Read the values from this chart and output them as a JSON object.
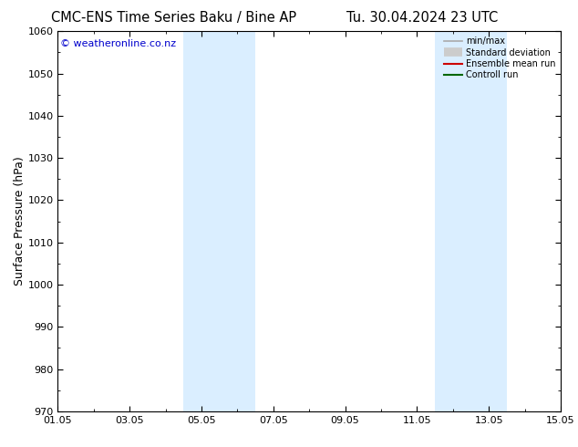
{
  "title_left": "CMC-ENS Time Series Baku / Bine AP",
  "title_right": "Tu. 30.04.2024 23 UTC",
  "xlabel_ticks": [
    "01.05",
    "03.05",
    "05.05",
    "07.05",
    "09.05",
    "11.05",
    "13.05",
    "15.05"
  ],
  "ylabel": "Surface Pressure (hPa)",
  "ylim": [
    970,
    1060
  ],
  "yticks": [
    970,
    980,
    990,
    1000,
    1010,
    1020,
    1030,
    1040,
    1050,
    1060
  ],
  "xlim": [
    0,
    14
  ],
  "xtick_positions": [
    0,
    2,
    4,
    6,
    8,
    10,
    12,
    14
  ],
  "shaded_bands": [
    {
      "x_start": 3.5,
      "x_end": 5.5
    },
    {
      "x_start": 10.5,
      "x_end": 12.5
    }
  ],
  "shade_color": "#daeeff",
  "watermark": "© weatheronline.co.nz",
  "watermark_color": "#0000cc",
  "background_color": "#ffffff",
  "legend_items": [
    {
      "label": "min/max",
      "color": "#aaaaaa",
      "lw": 1.2,
      "linestyle": "-"
    },
    {
      "label": "Standard deviation",
      "color": "#cccccc",
      "lw": 7,
      "linestyle": "-"
    },
    {
      "label": "Ensemble mean run",
      "color": "#cc0000",
      "lw": 1.5,
      "linestyle": "-"
    },
    {
      "label": "Controll run",
      "color": "#006600",
      "lw": 1.5,
      "linestyle": "-"
    }
  ],
  "title_fontsize": 10.5,
  "tick_fontsize": 8,
  "ylabel_fontsize": 9,
  "watermark_fontsize": 8
}
